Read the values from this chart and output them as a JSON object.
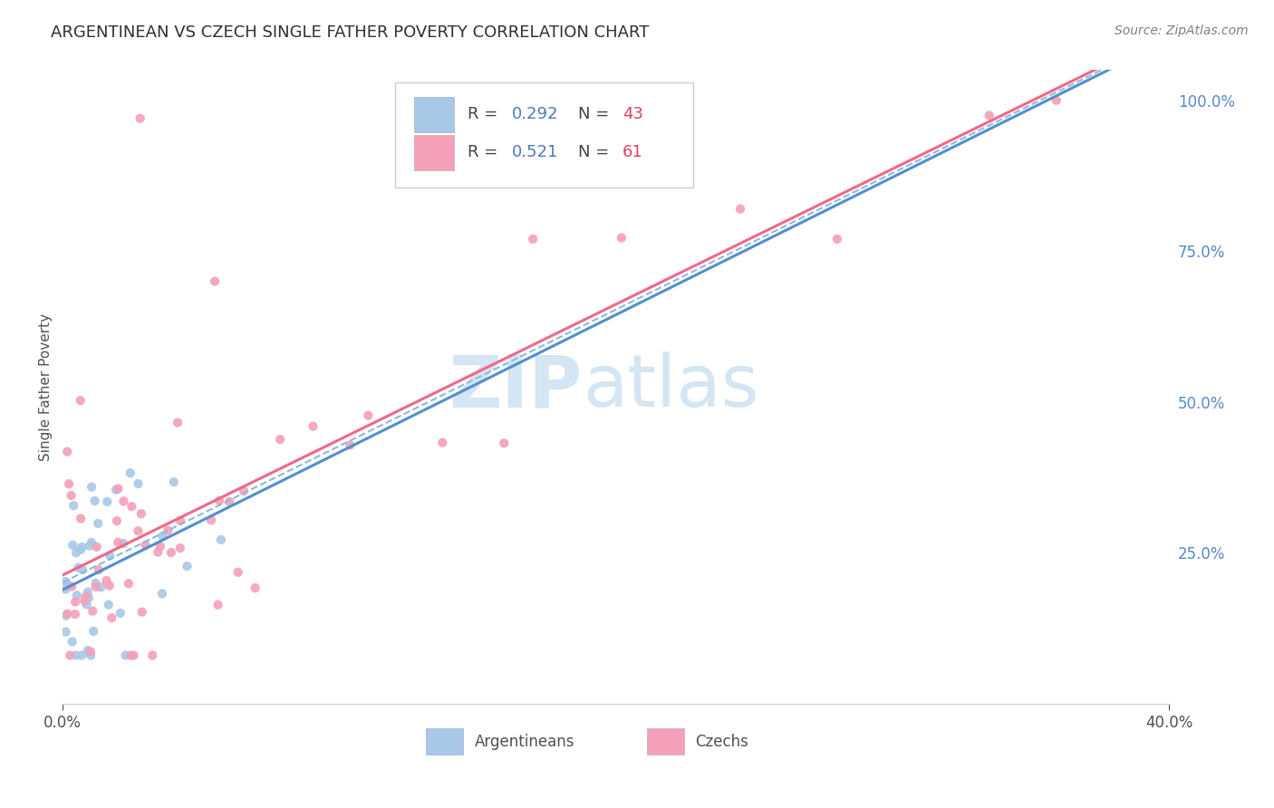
{
  "title": "ARGENTINEAN VS CZECH SINGLE FATHER POVERTY CORRELATION CHART",
  "source": "Source: ZipAtlas.com",
  "ylabel": "Single Father Poverty",
  "right_yticks": [
    "100.0%",
    "75.0%",
    "50.0%",
    "25.0%"
  ],
  "right_ytick_vals": [
    1.0,
    0.75,
    0.5,
    0.25
  ],
  "legend_blue_r": "0.292",
  "legend_blue_n": "43",
  "legend_pink_r": "0.521",
  "legend_pink_n": "61",
  "blue_color": "#a8c8e8",
  "pink_color": "#f4a0b8",
  "blue_line_color": "#5090d0",
  "pink_line_color": "#f06888",
  "dashed_line_color": "#90b8d8",
  "background_color": "#ffffff",
  "grid_color": "#e0e0ec",
  "title_color": "#303030",
  "source_color": "#808080",
  "axis_label_color": "#505050",
  "right_axis_color": "#5588cc",
  "legend_r_color": "#4a7ab8",
  "legend_n_color": "#e04060",
  "xlim": [
    0.0,
    0.4
  ],
  "ylim": [
    0.0,
    1.05
  ],
  "blue_line_slope": 2.0,
  "blue_line_intercept": 0.195,
  "pink_line_slope": 2.05,
  "pink_line_intercept": 0.185,
  "dash_line_slope": 2.1,
  "dash_line_intercept": 0.175
}
